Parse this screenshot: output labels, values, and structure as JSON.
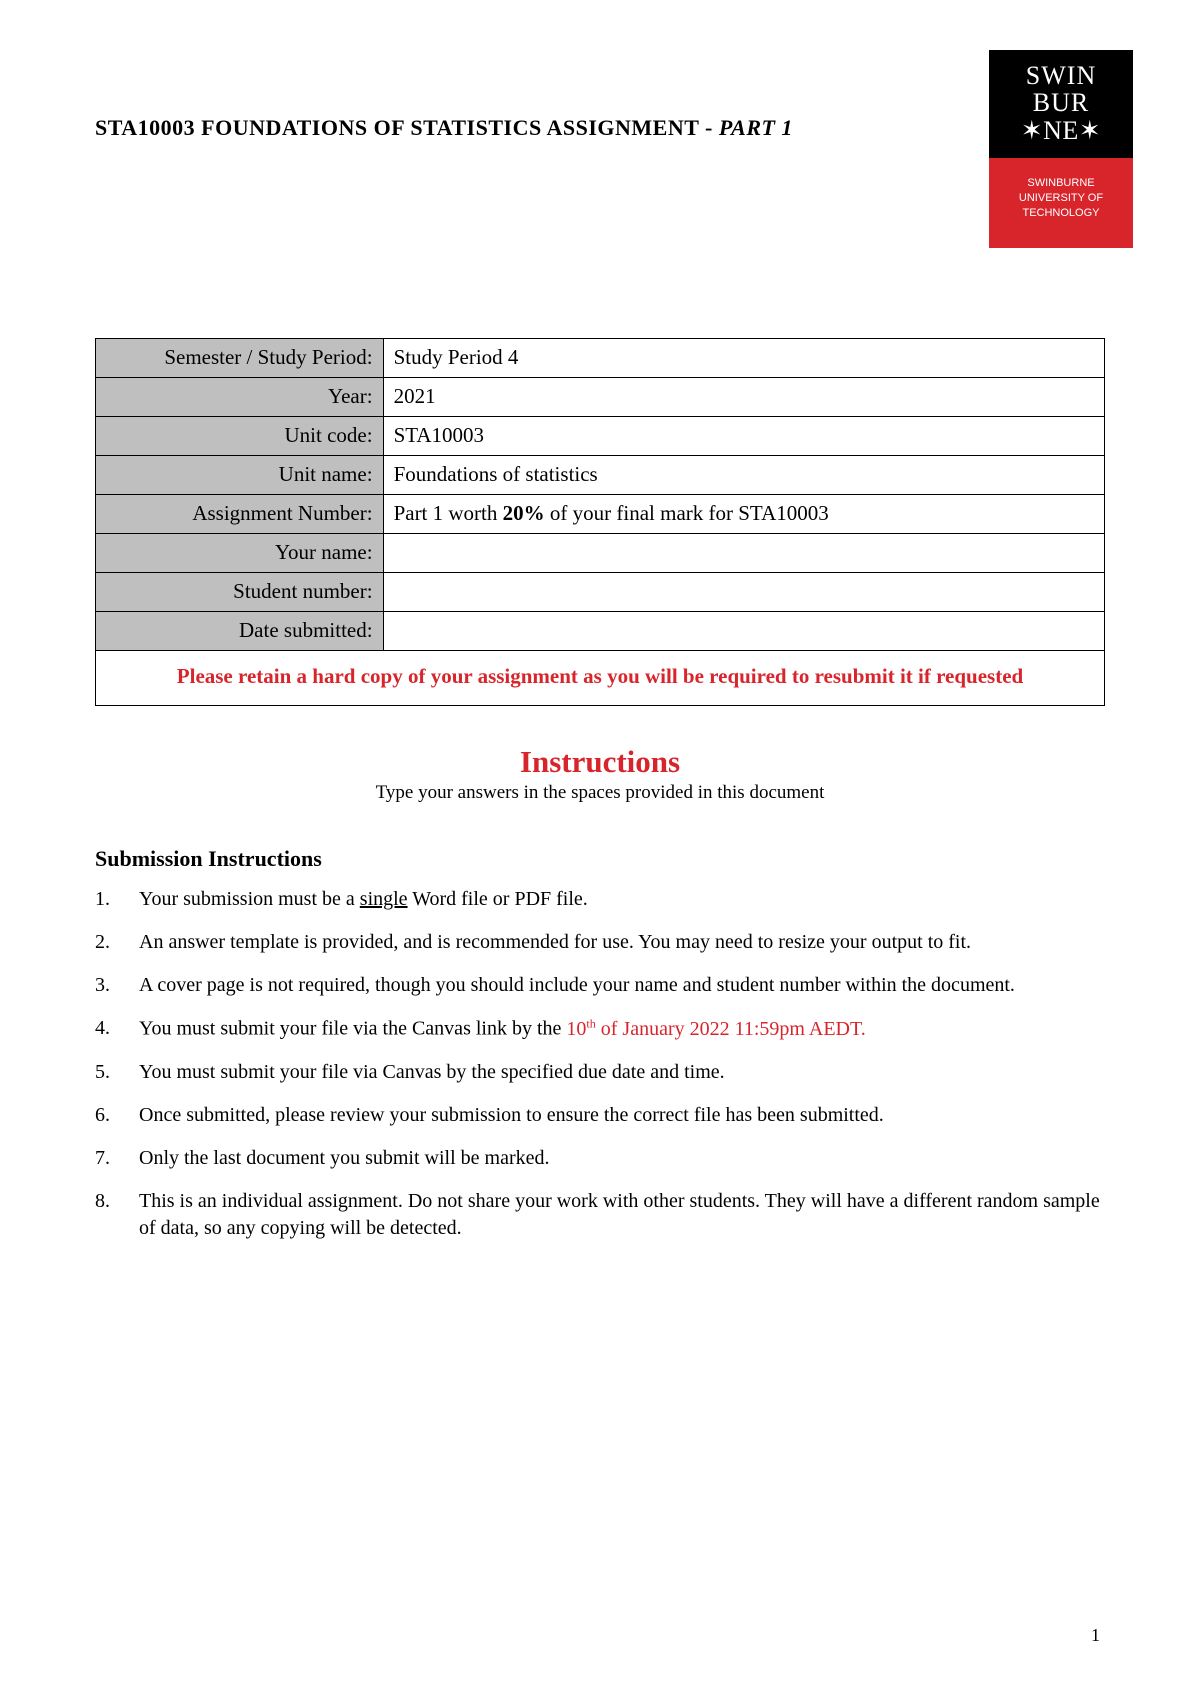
{
  "header": {
    "title_main": "STA10003 FOUNDATIONS OF STATISTICS ASSIGNMENT - ",
    "title_italic": "PART 1"
  },
  "logo": {
    "line1": "SWIN",
    "line2": "BUR",
    "line3": "✶NE✶",
    "sub1": "SWINBURNE",
    "sub2": "UNIVERSITY OF",
    "sub3": "TECHNOLOGY"
  },
  "info_table": {
    "rows": [
      {
        "label": "Semester / Study Period:",
        "value": "Study Period 4"
      },
      {
        "label": "Year:",
        "value": "2021"
      },
      {
        "label": "Unit code:",
        "value": "STA10003"
      },
      {
        "label": "Unit name:",
        "value": "Foundations of statistics"
      },
      {
        "label": "Assignment Number:",
        "value_pre": "Part 1 worth ",
        "value_bold": "20%",
        "value_post": " of your final mark for STA10003"
      },
      {
        "label": "Your name:",
        "value": ""
      },
      {
        "label": "Student number:",
        "value": ""
      },
      {
        "label": "Date submitted:",
        "value": ""
      }
    ],
    "warning": "Please retain a hard copy of your assignment as you will be required to resubmit it if requested"
  },
  "instructions": {
    "title": "Instructions",
    "subtitle": "Type your answers in the spaces provided in this document"
  },
  "submission": {
    "heading": "Submission Instructions",
    "items": [
      {
        "pre": " Your submission must be a ",
        "ul": "single",
        "post": " Word file or PDF file."
      },
      {
        "text": "An answer template is provided, and is recommended for use. You may need to resize your output to fit."
      },
      {
        "text": "A cover page is not required, though you should include your name and student number within the document."
      },
      {
        "pre": " You must submit your file via the Canvas link by the ",
        "due_pre": "10",
        "due_sup": "th",
        "due_post": " of January 2022 11:59pm AEDT."
      },
      {
        "text": "You must submit your file via Canvas by the specified due date and time."
      },
      {
        "text": "Once submitted, please review your submission to ensure the correct file has been submitted."
      },
      {
        "text": "Only the last document you submit will be marked."
      },
      {
        "text": "This is an individual assignment. Do not share your work with other students. They will have a different random sample of data, so any copying will be detected."
      }
    ]
  },
  "page_number": "1"
}
